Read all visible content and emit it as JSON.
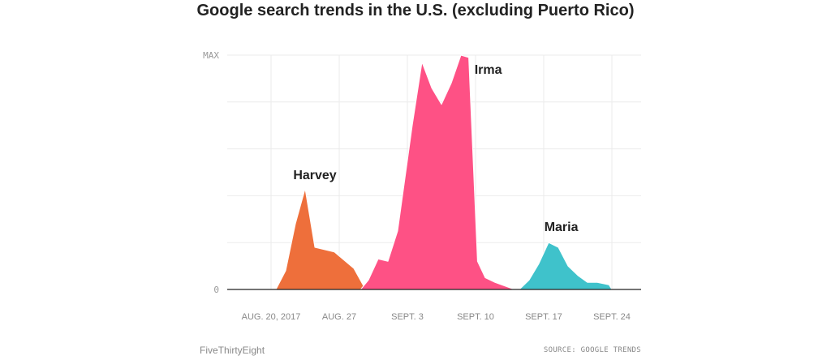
{
  "chart_data": {
    "type": "area",
    "title": "Google search trends in the U.S. (excluding Puerto Rico)",
    "xlabel": "",
    "ylabel": "",
    "y_tick_labels": [
      "0",
      "MAX"
    ],
    "ylim": [
      0,
      100
    ],
    "x_ticks": [
      {
        "day": 0,
        "label": "AUG. 20, 2017"
      },
      {
        "day": 7,
        "label": "AUG. 27"
      },
      {
        "day": 14,
        "label": "SEPT. 3"
      },
      {
        "day": 21,
        "label": "SEPT. 10"
      },
      {
        "day": 28,
        "label": "SEPT. 17"
      },
      {
        "day": 35,
        "label": "SEPT. 24"
      }
    ],
    "xlim": [
      -4.5,
      38
    ],
    "grid": true,
    "series": [
      {
        "name": "Harvey",
        "color": "#ee6f3b",
        "label_point": [
          4.5,
          47
        ],
        "points": [
          [
            -1.5,
            0
          ],
          [
            0.5,
            0
          ],
          [
            1.5,
            8
          ],
          [
            2.5,
            28
          ],
          [
            3.5,
            43
          ],
          [
            4.5,
            18
          ],
          [
            6.5,
            16
          ],
          [
            8.5,
            9
          ],
          [
            9.7,
            0
          ]
        ]
      },
      {
        "name": "Irma",
        "color": "#fe5185",
        "label_point": [
          22.3,
          92
        ],
        "points": [
          [
            9.2,
            0
          ],
          [
            10.0,
            4
          ],
          [
            11.0,
            13
          ],
          [
            12.0,
            12
          ],
          [
            13.0,
            25
          ],
          [
            14.5,
            70
          ],
          [
            15.5,
            97
          ],
          [
            16.5,
            86
          ],
          [
            17.5,
            79
          ],
          [
            18.5,
            88
          ],
          [
            19.5,
            100
          ],
          [
            20.3,
            99
          ],
          [
            21.2,
            12
          ],
          [
            22.0,
            5
          ],
          [
            23.0,
            3
          ],
          [
            25.0,
            0
          ]
        ]
      },
      {
        "name": "Maria",
        "color": "#3fc2cb",
        "label_point": [
          29.8,
          25
        ],
        "points": [
          [
            25.5,
            0
          ],
          [
            26.5,
            4
          ],
          [
            27.5,
            11
          ],
          [
            28.5,
            20
          ],
          [
            29.5,
            18
          ],
          [
            30.5,
            10
          ],
          [
            31.5,
            6
          ],
          [
            32.5,
            3
          ],
          [
            33.5,
            3
          ],
          [
            34.7,
            2
          ],
          [
            35.0,
            0
          ]
        ]
      }
    ]
  },
  "footer": {
    "brand": "FiveThirtyEight",
    "source": "SOURCE: GOOGLE TRENDS"
  }
}
